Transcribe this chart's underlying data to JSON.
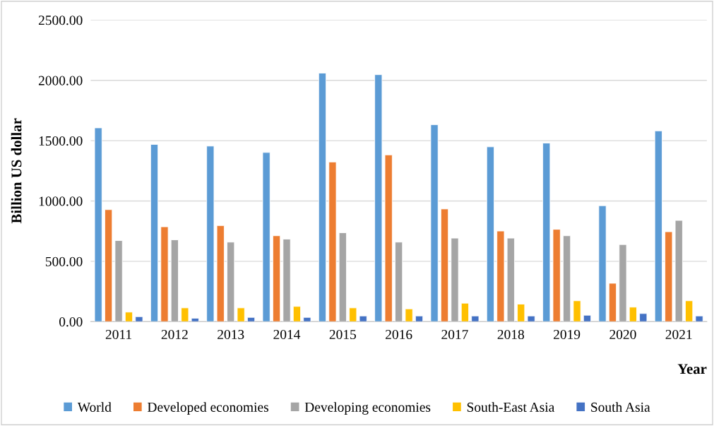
{
  "chart_data": {
    "type": "bar",
    "xlabel": "Year",
    "ylabel": "Billion US dollar",
    "categories": [
      "2011",
      "2012",
      "2013",
      "2014",
      "2015",
      "2016",
      "2017",
      "2018",
      "2019",
      "2020",
      "2021"
    ],
    "series": [
      {
        "name": "World",
        "color": "#5b9bd5",
        "values": [
          1606,
          1469,
          1455,
          1402,
          2060,
          2047,
          1632,
          1449,
          1480,
          961,
          1581
        ]
      },
      {
        "name": "Developed economies",
        "color": "#ed7d31",
        "values": [
          928,
          786,
          796,
          712,
          1323,
          1382,
          934,
          751,
          765,
          318,
          745
        ]
      },
      {
        "name": "Developing economies",
        "color": "#a5a5a5",
        "values": [
          672,
          678,
          659,
          684,
          737,
          659,
          692,
          692,
          712,
          639,
          839
        ]
      },
      {
        "name": "South-East Asia",
        "color": "#ffc000",
        "values": [
          79,
          114,
          114,
          126,
          114,
          106,
          153,
          145,
          173,
          120,
          173
        ]
      },
      {
        "name": "South Asia",
        "color": "#4472c4",
        "values": [
          41,
          28,
          35,
          35,
          47,
          47,
          47,
          47,
          53,
          67,
          47
        ]
      }
    ],
    "ylim": [
      0,
      2500
    ],
    "yticks": [
      {
        "value": 0,
        "label": "0.00"
      },
      {
        "value": 500,
        "label": "500.00"
      },
      {
        "value": 1000,
        "label": "1000.00"
      },
      {
        "value": 1500,
        "label": "1500.00"
      },
      {
        "value": 2000,
        "label": "2000.00"
      },
      {
        "value": 2500,
        "label": "2500.00"
      }
    ],
    "grid": "y",
    "legend": "bottom"
  }
}
